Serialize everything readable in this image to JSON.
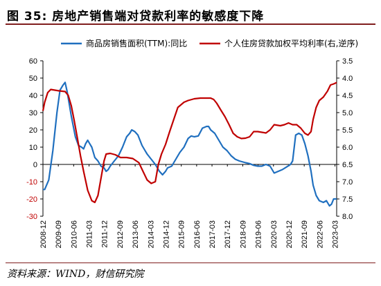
{
  "figure": {
    "title": "图 35:  房地产销售端对贷款利率的敏感度下降",
    "source": "资料来源：WIND，财信研究院"
  },
  "chart_data": {
    "type": "line",
    "x_labels": [
      "2008-12",
      "2009-09",
      "2010-06",
      "2011-03",
      "2011-12",
      "2012-09",
      "2013-06",
      "2014-03",
      "2014-12",
      "2015-09",
      "2016-06",
      "2017-03",
      "2017-12",
      "2018-09",
      "2019-06",
      "2020-03",
      "2020-12",
      "2021-09",
      "2022-06",
      "2023-03"
    ],
    "x_range": [
      2008.917,
      2023.25
    ],
    "left_axis": {
      "ylim": [
        -30,
        60
      ],
      "ticks": [
        -30,
        -20,
        -10,
        0,
        10,
        20,
        30,
        40,
        50,
        60
      ]
    },
    "right_axis": {
      "ylim": [
        8.0,
        3.5
      ],
      "inverted": true,
      "ticks": [
        "3.5",
        "4.0",
        "4.5",
        "5.0",
        "5.5",
        "6.0",
        "6.5",
        "7.0",
        "7.5",
        "8.0"
      ]
    },
    "legend_position": "top",
    "colors": {
      "sales": "#1f6fbf",
      "rate": "#c00000"
    },
    "series": [
      {
        "name": "商品房销售面积(TTM):同比",
        "axis": "left",
        "points": [
          [
            2008.917,
            -14.5
          ],
          [
            2009.0,
            -14.5
          ],
          [
            2009.2,
            -9
          ],
          [
            2009.4,
            8
          ],
          [
            2009.6,
            30
          ],
          [
            2009.75,
            43
          ],
          [
            2009.9,
            46
          ],
          [
            2010.0,
            47.5
          ],
          [
            2010.1,
            42
          ],
          [
            2010.3,
            28
          ],
          [
            2010.5,
            16
          ],
          [
            2010.65,
            11
          ],
          [
            2010.8,
            10
          ],
          [
            2010.9,
            9
          ],
          [
            2011.0,
            12
          ],
          [
            2011.1,
            14
          ],
          [
            2011.2,
            12
          ],
          [
            2011.3,
            10
          ],
          [
            2011.45,
            4
          ],
          [
            2011.6,
            2
          ],
          [
            2011.75,
            -1
          ],
          [
            2011.9,
            -2
          ],
          [
            2012.0,
            -4
          ],
          [
            2012.1,
            -3
          ],
          [
            2012.2,
            -1
          ],
          [
            2012.4,
            2
          ],
          [
            2012.6,
            5
          ],
          [
            2012.8,
            10
          ],
          [
            2013.0,
            16
          ],
          [
            2013.15,
            18
          ],
          [
            2013.25,
            20
          ],
          [
            2013.4,
            19
          ],
          [
            2013.55,
            17
          ],
          [
            2013.75,
            11
          ],
          [
            2013.9,
            8
          ],
          [
            2014.0,
            6
          ],
          [
            2014.2,
            3
          ],
          [
            2014.4,
            0
          ],
          [
            2014.6,
            -4
          ],
          [
            2014.75,
            -6
          ],
          [
            2014.9,
            -4
          ],
          [
            2015.0,
            -2
          ],
          [
            2015.2,
            -1
          ],
          [
            2015.4,
            3
          ],
          [
            2015.6,
            7
          ],
          [
            2015.8,
            10
          ],
          [
            2016.0,
            15
          ],
          [
            2016.15,
            16.5
          ],
          [
            2016.3,
            16
          ],
          [
            2016.5,
            16.5
          ],
          [
            2016.7,
            21
          ],
          [
            2016.9,
            22
          ],
          [
            2017.0,
            22
          ],
          [
            2017.1,
            20
          ],
          [
            2017.3,
            18
          ],
          [
            2017.5,
            14
          ],
          [
            2017.7,
            10
          ],
          [
            2017.9,
            8
          ],
          [
            2018.1,
            5
          ],
          [
            2018.3,
            3
          ],
          [
            2018.5,
            2
          ],
          [
            2018.8,
            1
          ],
          [
            2019.0,
            0.5
          ],
          [
            2019.2,
            -0.5
          ],
          [
            2019.4,
            -1
          ],
          [
            2019.6,
            -1
          ],
          [
            2019.8,
            0
          ],
          [
            2020.0,
            -1
          ],
          [
            2020.2,
            -5
          ],
          [
            2020.4,
            -4
          ],
          [
            2020.6,
            -3
          ],
          [
            2020.8,
            -1.5
          ],
          [
            2021.0,
            0
          ],
          [
            2021.1,
            2
          ],
          [
            2021.25,
            17
          ],
          [
            2021.4,
            18
          ],
          [
            2021.55,
            17
          ],
          [
            2021.7,
            12
          ],
          [
            2021.85,
            5
          ],
          [
            2022.0,
            -4
          ],
          [
            2022.1,
            -12
          ],
          [
            2022.25,
            -18
          ],
          [
            2022.4,
            -21
          ],
          [
            2022.6,
            -22
          ],
          [
            2022.75,
            -21
          ],
          [
            2022.9,
            -24
          ],
          [
            2023.0,
            -23
          ],
          [
            2023.1,
            -20
          ],
          [
            2023.25,
            -20
          ]
        ]
      },
      {
        "name": "个人住房贷款加权平均利率(右,逆序)",
        "axis": "right",
        "points": [
          [
            2008.917,
            4.95
          ],
          [
            2009.0,
            4.7
          ],
          [
            2009.15,
            4.42
          ],
          [
            2009.3,
            4.33
          ],
          [
            2009.5,
            4.35
          ],
          [
            2009.7,
            4.37
          ],
          [
            2009.85,
            4.38
          ],
          [
            2010.0,
            4.39
          ],
          [
            2010.15,
            4.5
          ],
          [
            2010.3,
            4.8
          ],
          [
            2010.45,
            5.25
          ],
          [
            2010.6,
            5.75
          ],
          [
            2010.75,
            6.25
          ],
          [
            2010.9,
            6.7
          ],
          [
            2011.1,
            7.25
          ],
          [
            2011.3,
            7.55
          ],
          [
            2011.45,
            7.6
          ],
          [
            2011.6,
            7.4
          ],
          [
            2011.75,
            6.9
          ],
          [
            2011.9,
            6.4
          ],
          [
            2012.0,
            6.2
          ],
          [
            2012.2,
            6.18
          ],
          [
            2012.45,
            6.22
          ],
          [
            2012.7,
            6.3
          ],
          [
            2013.0,
            6.3
          ],
          [
            2013.3,
            6.33
          ],
          [
            2013.6,
            6.45
          ],
          [
            2013.8,
            6.7
          ],
          [
            2014.0,
            6.95
          ],
          [
            2014.2,
            7.05
          ],
          [
            2014.4,
            7.0
          ],
          [
            2014.55,
            6.5
          ],
          [
            2014.7,
            6.2
          ],
          [
            2014.9,
            5.92
          ],
          [
            2015.1,
            5.55
          ],
          [
            2015.3,
            5.2
          ],
          [
            2015.5,
            4.85
          ],
          [
            2015.8,
            4.7
          ],
          [
            2016.0,
            4.65
          ],
          [
            2016.3,
            4.6
          ],
          [
            2016.6,
            4.58
          ],
          [
            2016.9,
            4.58
          ],
          [
            2017.1,
            4.58
          ],
          [
            2017.25,
            4.62
          ],
          [
            2017.4,
            4.73
          ],
          [
            2017.6,
            4.93
          ],
          [
            2017.8,
            5.12
          ],
          [
            2018.0,
            5.35
          ],
          [
            2018.2,
            5.6
          ],
          [
            2018.4,
            5.7
          ],
          [
            2018.6,
            5.75
          ],
          [
            2018.8,
            5.74
          ],
          [
            2019.0,
            5.7
          ],
          [
            2019.2,
            5.55
          ],
          [
            2019.4,
            5.55
          ],
          [
            2019.6,
            5.57
          ],
          [
            2019.8,
            5.59
          ],
          [
            2020.0,
            5.5
          ],
          [
            2020.2,
            5.35
          ],
          [
            2020.5,
            5.38
          ],
          [
            2020.7,
            5.35
          ],
          [
            2020.9,
            5.3
          ],
          [
            2021.1,
            5.35
          ],
          [
            2021.3,
            5.35
          ],
          [
            2021.5,
            5.45
          ],
          [
            2021.7,
            5.6
          ],
          [
            2021.85,
            5.65
          ],
          [
            2022.0,
            5.55
          ],
          [
            2022.1,
            5.2
          ],
          [
            2022.25,
            4.85
          ],
          [
            2022.4,
            4.65
          ],
          [
            2022.6,
            4.55
          ],
          [
            2022.8,
            4.38
          ],
          [
            2022.95,
            4.2
          ],
          [
            2023.1,
            4.17
          ],
          [
            2023.25,
            4.13
          ]
        ]
      }
    ]
  }
}
